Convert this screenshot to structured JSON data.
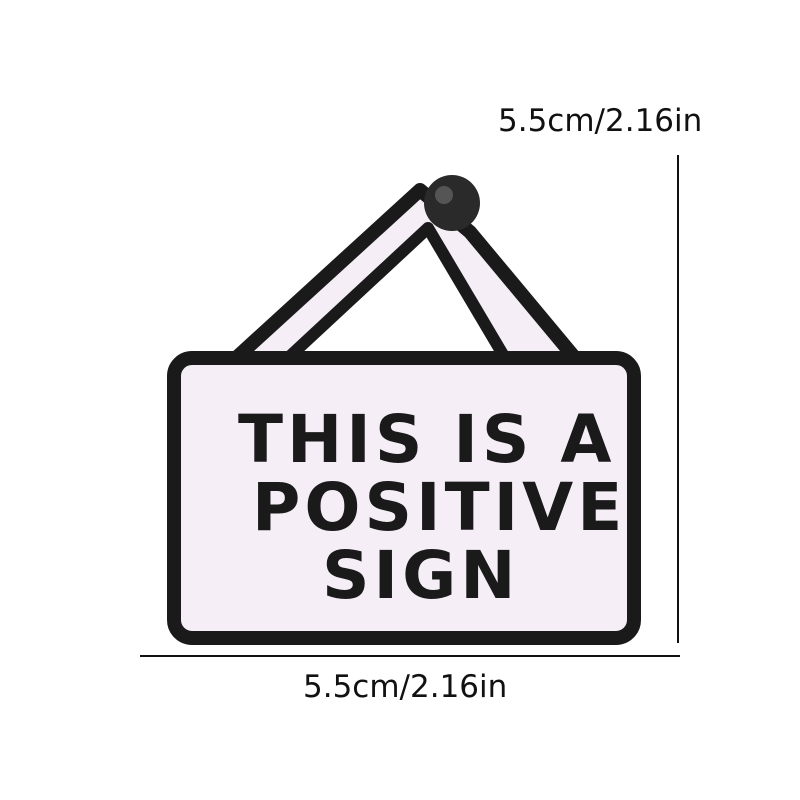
{
  "dimensions": {
    "height_label": "5.5cm/2.16in",
    "width_label": "5.5cm/2.16in"
  },
  "patch": {
    "lines": [
      "THIS IS A",
      "POSITIVE",
      "SIGN"
    ]
  },
  "colors": {
    "outline": "#1a1a1a",
    "fabric": "#f5eef6",
    "background": "#ffffff"
  }
}
